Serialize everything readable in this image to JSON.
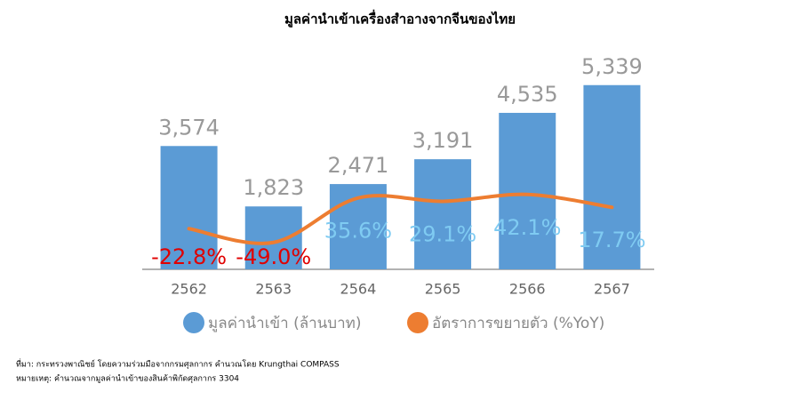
{
  "chart_data": {
    "type": "bar-line",
    "title": "มูลค่านำเข้าเครื่องสำอางจากจีนของไทย",
    "categories": [
      "2562",
      "2563",
      "2564",
      "2565",
      "2566",
      "2567"
    ],
    "series": [
      {
        "name": "มูลค่านำเข้า (ล้านบาท)",
        "type": "bar",
        "color": "#5b9bd5",
        "values": [
          3574,
          1823,
          2471,
          3191,
          4535,
          5339
        ],
        "value_labels": [
          "3,574",
          "1,823",
          "2,471",
          "3,191",
          "4,535",
          "5,339"
        ]
      },
      {
        "name": "อัตราการขยายตัว (%YoY)",
        "type": "line",
        "axis": "y2",
        "color": "#ed7d31",
        "values": [
          -22.8,
          -49.0,
          35.6,
          29.1,
          42.1,
          17.7
        ],
        "value_labels": [
          "-22.8%",
          "-49.0%",
          "35.6%",
          "29.1%",
          "42.1%",
          "17.7%"
        ]
      }
    ],
    "ylim": [
      0,
      6260
    ],
    "y2lim": [
      -100,
      310
    ],
    "notes": [
      "ที่มา: กระทรวงพาณิชย์ โดยความร่วมมือจากกรมศุลกากร คำนวณโดย Krungthai COMPASS",
      "หมายเหตุ: คำนวณจากมูลค่านำเข้าของสินค้าพิกัดศุลกากร 3304"
    ]
  }
}
